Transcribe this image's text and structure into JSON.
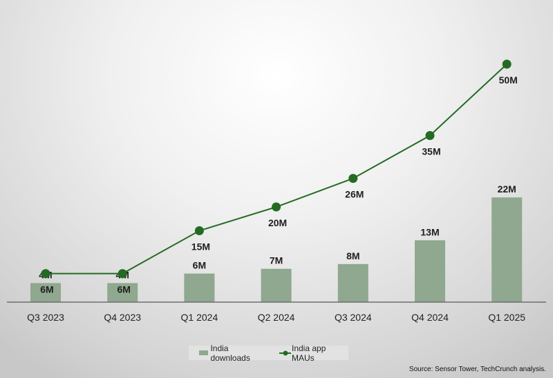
{
  "chart_data": {
    "type": "bar+line",
    "categories": [
      "Q3 2023",
      "Q4 2023",
      "Q1 2024",
      "Q2 2024",
      "Q3 2024",
      "Q4 2024",
      "Q1 2025"
    ],
    "series": [
      {
        "name": "India downloads",
        "type": "bar",
        "values": [
          4,
          4,
          6,
          7,
          8,
          13,
          22
        ],
        "labels": [
          "4M",
          "4M",
          "6M",
          "7M",
          "8M",
          "13M",
          "22M"
        ],
        "color": "#8fa88f"
      },
      {
        "name": "India app MAUs",
        "type": "line",
        "values": [
          6,
          6,
          15,
          20,
          26,
          35,
          50
        ],
        "labels": [
          "6M",
          "6M",
          "15M",
          "20M",
          "26M",
          "35M",
          "50M"
        ],
        "color": "#236b23"
      }
    ],
    "unit": "M",
    "legend": "bottom",
    "grid": false
  },
  "source": "Source: Sensor Tower, TechCrunch analysis."
}
